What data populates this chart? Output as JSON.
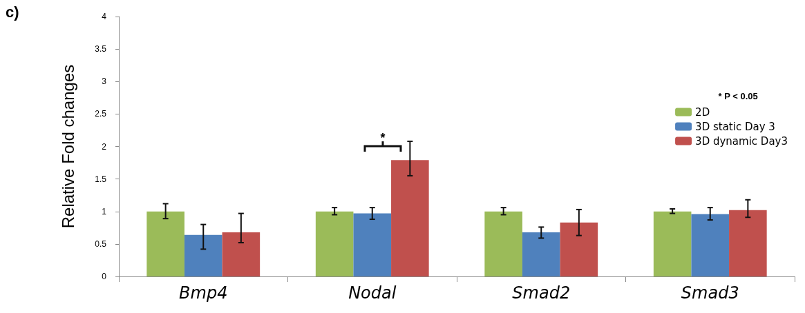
{
  "chart_data": {
    "type": "bar",
    "ylabel": "Relative Fold changes",
    "categories": [
      "Bmp4",
      "Nodal",
      "Smad2",
      "Smad3"
    ],
    "series": [
      {
        "name": "2D",
        "color": "#9bbb59",
        "values": [
          1.0,
          1.0,
          1.0,
          1.0
        ],
        "errors": [
          [
            0.89,
            1.12
          ],
          [
            0.95,
            1.06
          ],
          [
            0.95,
            1.06
          ],
          [
            0.97,
            1.04
          ]
        ]
      },
      {
        "name": "3D static Day 3",
        "color": "#4f81bd",
        "values": [
          0.64,
          0.97,
          0.68,
          0.96
        ],
        "errors": [
          [
            0.42,
            0.8
          ],
          [
            0.88,
            1.06
          ],
          [
            0.59,
            0.76
          ],
          [
            0.87,
            1.06
          ]
        ]
      },
      {
        "name": "3D dynamic Day3",
        "color": "#c0504d",
        "values": [
          0.68,
          1.79,
          0.83,
          1.02
        ],
        "errors": [
          [
            0.52,
            0.97
          ],
          [
            1.55,
            2.08
          ],
          [
            0.63,
            1.03
          ],
          [
            0.91,
            1.18
          ]
        ]
      }
    ],
    "ylim": [
      0,
      4
    ],
    "yticks": [
      0,
      0.5,
      1,
      1.5,
      2,
      2.5,
      3,
      3.5,
      4
    ],
    "grid": false,
    "legend": "right",
    "annotations": [
      "c)",
      "* P < 0.05",
      "*"
    ]
  }
}
